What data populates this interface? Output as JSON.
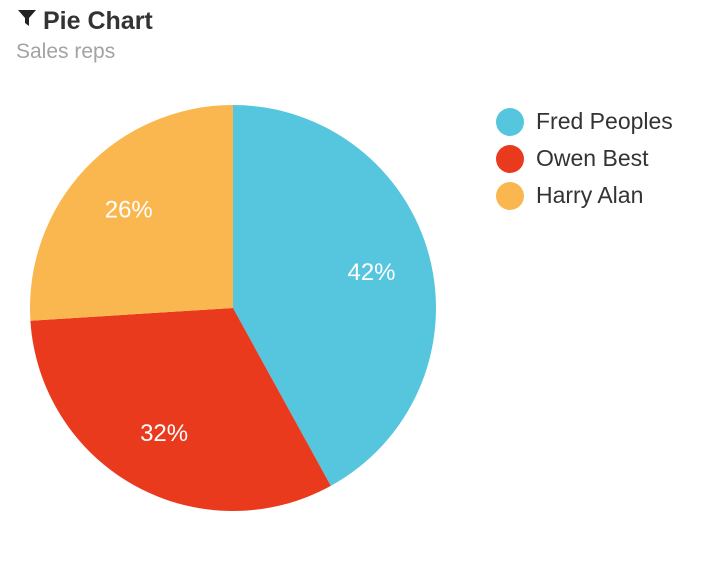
{
  "header": {
    "icon": "filter-icon",
    "title": "Pie Chart",
    "subtitle": "Sales reps"
  },
  "chart_data": {
    "type": "pie",
    "title": "Pie Chart",
    "subtitle": "Sales reps",
    "legend_position": "right",
    "slices": [
      {
        "name": "Fred Peoples",
        "value": 42,
        "label": "42%",
        "color": "#56c5de"
      },
      {
        "name": "Owen Best",
        "value": 32,
        "label": "32%",
        "color": "#ea3a1e"
      },
      {
        "name": "Harry Alan",
        "value": 26,
        "label": "26%",
        "color": "#fab750"
      }
    ]
  }
}
